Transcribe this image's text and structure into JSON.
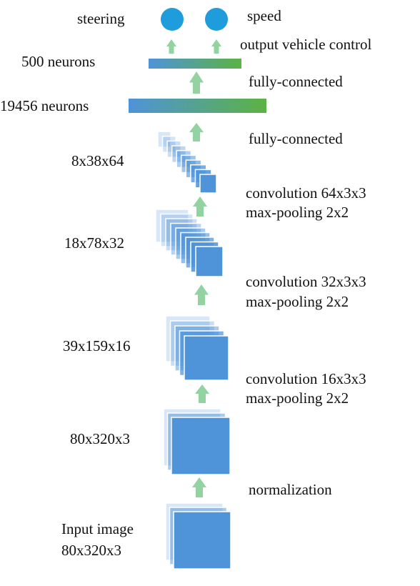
{
  "colors": {
    "layer_fill": "#4f93d9",
    "layer_stroke": "#ffffff",
    "arrow": "#93d3a2",
    "output_node": "#1f9cdc",
    "fc_gradient_start": "#4f93d9",
    "fc_gradient_end": "#5cb244"
  },
  "outputs": {
    "steering": "steering",
    "speed": "speed",
    "caption": "output vehicle control"
  },
  "fc_layers": {
    "fc500_size": "500 neurons",
    "fc500_op": "fully-connected",
    "fc19456_size": "19456 neurons",
    "fc19456_op": "fully-connected"
  },
  "conv_layers": {
    "conv3_size": "8x38x64",
    "conv3_op_line1": "convolution 64x3x3",
    "conv3_op_line2": "max-pooling 2x2",
    "conv2_size": "18x78x32",
    "conv2_op_line1": "convolution 32x3x3",
    "conv2_op_line2": "max-pooling 2x2",
    "conv1_size": "39x159x16",
    "conv1_op_line1": "convolution 16x3x3",
    "conv1_op_line2": "max-pooling 2x2"
  },
  "input_stage": {
    "norm_size": "80x320x3",
    "norm_op": "normalization",
    "input_line1": "Input image",
    "input_line2": "80x320x3"
  }
}
